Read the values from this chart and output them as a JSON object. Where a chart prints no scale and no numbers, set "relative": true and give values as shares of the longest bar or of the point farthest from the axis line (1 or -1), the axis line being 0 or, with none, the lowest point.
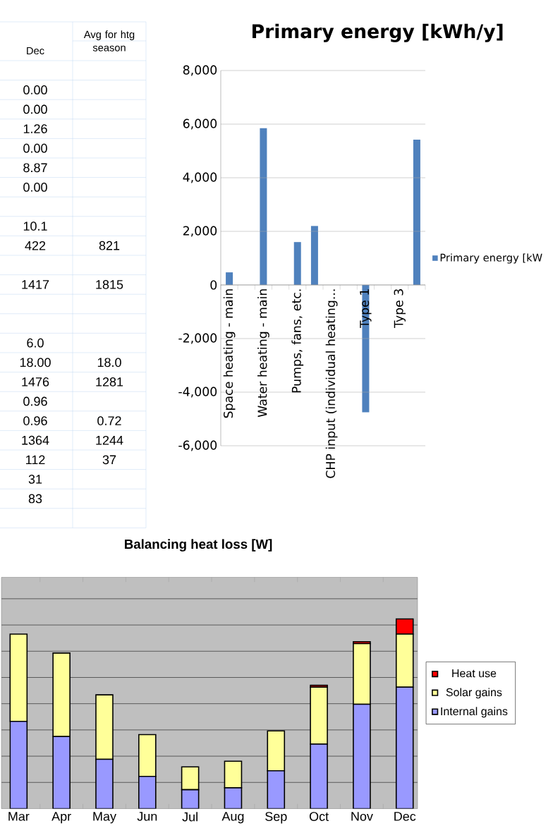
{
  "chart_data": [
    {
      "type": "other",
      "categories": [
        "Dec",
        "Avg for htg season"
      ],
      "cell_labels": [
        [
          null,
          null
        ],
        [
          "0.00",
          null
        ],
        [
          "0.00",
          null
        ],
        [
          "1.26",
          null
        ],
        [
          "0.00",
          null
        ],
        [
          "8.87",
          null
        ],
        [
          "0.00",
          null
        ],
        [
          null,
          null
        ],
        [
          "10.1",
          null
        ],
        [
          "422",
          "821"
        ],
        [
          null,
          null
        ],
        [
          "1417",
          "1815"
        ],
        [
          null,
          null
        ],
        [
          null,
          null
        ],
        [
          "6.0",
          null
        ],
        [
          "18.00",
          "18.0"
        ],
        [
          "1476",
          "1281"
        ],
        [
          "0.96",
          null
        ],
        [
          "0.96",
          "0.72"
        ],
        [
          "1364",
          "1244"
        ],
        [
          "112",
          "37"
        ],
        [
          "31",
          null
        ],
        [
          "83",
          null
        ],
        [
          null,
          null
        ]
      ]
    },
    {
      "type": "bar",
      "title": "Primary energy [kWh/y]",
      "categories": [
        "Space heating - main",
        null,
        "Water heating - main",
        null,
        "Pumps, fans, etc.",
        null,
        "CHP input (individual heating...",
        null,
        "Type 1",
        null,
        "Type 3",
        null
      ],
      "series": [
        {
          "name": "Primary energy [kW",
          "color": "#4f81bd",
          "values": [
            470,
            null,
            5850,
            null,
            1600,
            2200,
            0,
            null,
            -4750,
            null,
            0,
            5420
          ]
        }
      ],
      "ylim": [
        -6000,
        8000
      ],
      "yticks": [
        {
          "value": -6000,
          "label": "-6,000"
        },
        {
          "value": -4000,
          "label": "-4,000"
        },
        {
          "value": -2000,
          "label": "-2,000"
        },
        0,
        {
          "value": 2000,
          "label": "2,000"
        },
        {
          "value": 4000,
          "label": "4,000"
        },
        {
          "value": 6000,
          "label": "6,000"
        },
        {
          "value": 8000,
          "label": "8,000"
        }
      ],
      "grid": "y",
      "legend": "right"
    },
    {
      "type": "bar",
      "title": "Balancing heat loss [W]",
      "stacked": true,
      "relative": true,
      "categories": [
        "Mar",
        "Apr",
        "May",
        "Jun",
        "Jul",
        "Aug",
        "Sep",
        "Oct",
        "Nov",
        "Dec"
      ],
      "series": [
        {
          "name": "Internal gains",
          "color": "#9999ff",
          "values": [
            0.46,
            0.38,
            0.26,
            0.17,
            0.1,
            0.11,
            0.2,
            0.34,
            0.55,
            0.64
          ]
        },
        {
          "name": "Solar gains",
          "color": "#ffff99",
          "values": [
            0.46,
            0.44,
            0.34,
            0.22,
            0.12,
            0.14,
            0.21,
            0.3,
            0.32,
            0.28
          ]
        },
        {
          "name": "Heat use",
          "color": "#ff0000",
          "values": [
            0,
            0,
            0,
            0,
            0,
            0,
            0,
            0.01,
            0.01,
            0.08
          ]
        }
      ],
      "grid": "y",
      "legend": "right"
    }
  ]
}
